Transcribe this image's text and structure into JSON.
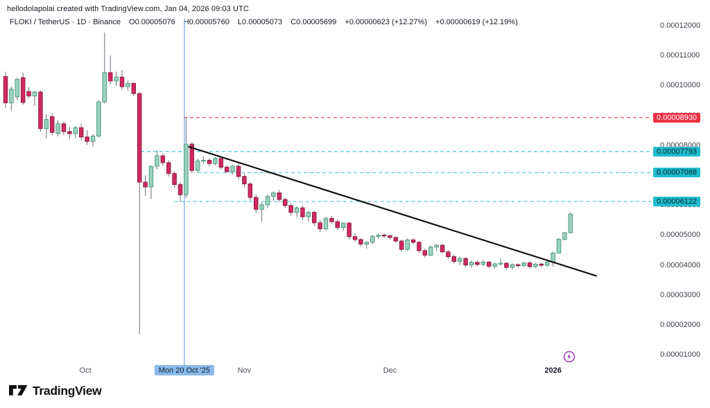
{
  "header": {
    "credit_line": "hellodolapolai created with TradingView.com, Jan 04, 2026 09:03 UTC",
    "symbol_info": "FLOKI / TetherUS · 1D · Binance",
    "o": "O0.00005076",
    "h": "H0.00005760",
    "l": "L0.00005073",
    "c": "C0.00005699",
    "chg1": "+0.00000623 (+12.27%)",
    "chg2": "+0.00000619 (+12.19%)"
  },
  "footer": {
    "logo_text": "TradingView"
  },
  "colors": {
    "up_fill": "#9ad2bb",
    "up_border": "#4f9a83",
    "down_fill": "#d02a5e",
    "down_border": "#8e1e47",
    "wick": "#6a6d78",
    "trendline": "#111111",
    "vline": "#8fb9e6",
    "resistance": "#ef3146",
    "support": "#1fbccd",
    "axis_text": "#3a3e4a"
  },
  "chart_data": {
    "type": "candlestick",
    "symbol": "FLOKI/TetherUS",
    "interval": "1D",
    "exchange": "Binance",
    "price_unit": 1e-08,
    "note": "candles are [open,high,low,close] in units of 0.00000001",
    "candles": [
      [
        10300,
        10460,
        9260,
        9420
      ],
      [
        9420,
        9960,
        9160,
        9880
      ],
      [
        9620,
        10260,
        9500,
        10200
      ],
      [
        10260,
        10430,
        9360,
        9430
      ],
      [
        9800,
        9940,
        9560,
        9650
      ],
      [
        9650,
        9830,
        9320,
        9780
      ],
      [
        9780,
        9830,
        8460,
        8560
      ],
      [
        8560,
        9040,
        8230,
        8860
      ],
      [
        8960,
        9070,
        8340,
        8430
      ],
      [
        8400,
        8830,
        8300,
        8720
      ],
      [
        8720,
        8800,
        8340,
        8460
      ],
      [
        8460,
        8620,
        8210,
        8390
      ],
      [
        8390,
        8650,
        8240,
        8590
      ],
      [
        8590,
        8730,
        8180,
        8280
      ],
      [
        8280,
        8500,
        8020,
        8130
      ],
      [
        8130,
        8370,
        7950,
        8310
      ],
      [
        8310,
        9520,
        8260,
        9450
      ],
      [
        9450,
        11770,
        9400,
        10430
      ],
      [
        10430,
        11000,
        10040,
        10150
      ],
      [
        10150,
        10460,
        9980,
        10280
      ],
      [
        10280,
        10520,
        9850,
        9960
      ],
      [
        9960,
        10160,
        9830,
        10070
      ],
      [
        10070,
        10110,
        9640,
        9730
      ],
      [
        9730,
        9770,
        1700,
        6770
      ],
      [
        6770,
        6990,
        6310,
        6610
      ],
      [
        6610,
        7320,
        6200,
        7300
      ],
      [
        7300,
        7830,
        7200,
        7650
      ],
      [
        7650,
        7730,
        7310,
        7420
      ],
      [
        7420,
        7500,
        6960,
        7060
      ],
      [
        7060,
        7130,
        6580,
        6690
      ],
      [
        6690,
        6780,
        6122,
        6350
      ],
      [
        6350,
        8930,
        6250,
        8040
      ],
      [
        8040,
        8100,
        7070,
        7160
      ],
      [
        7160,
        7560,
        7100,
        7480
      ],
      [
        7480,
        7630,
        7380,
        7500
      ],
      [
        7500,
        7570,
        7300,
        7390
      ],
      [
        7390,
        7610,
        7330,
        7560
      ],
      [
        7560,
        7640,
        7180,
        7270
      ],
      [
        7270,
        7340,
        7088,
        7120
      ],
      [
        7120,
        7360,
        7020,
        7300
      ],
      [
        7300,
        7380,
        6850,
        6960
      ],
      [
        6960,
        7060,
        6600,
        6710
      ],
      [
        6710,
        6760,
        6150,
        6260
      ],
      [
        6260,
        6360,
        5750,
        5860
      ],
      [
        5860,
        6110,
        5450,
        6010
      ],
      [
        6010,
        6360,
        5910,
        6290
      ],
      [
        6290,
        6460,
        6150,
        6410
      ],
      [
        6410,
        6510,
        6100,
        6190
      ],
      [
        6190,
        6260,
        5900,
        5990
      ],
      [
        5990,
        6060,
        5650,
        5760
      ],
      [
        5760,
        5960,
        5600,
        5910
      ],
      [
        5910,
        5990,
        5500,
        5610
      ],
      [
        5610,
        5810,
        5450,
        5760
      ],
      [
        5760,
        5810,
        5300,
        5410
      ],
      [
        5410,
        5510,
        5100,
        5210
      ],
      [
        5210,
        5610,
        5150,
        5560
      ],
      [
        5560,
        5640,
        5380,
        5450
      ],
      [
        5450,
        5520,
        5170,
        5250
      ],
      [
        5250,
        5430,
        5150,
        5400
      ],
      [
        5400,
        5450,
        4850,
        4950
      ],
      [
        4950,
        5060,
        4780,
        4850
      ],
      [
        4850,
        4900,
        4620,
        4700
      ],
      [
        4700,
        4800,
        4550,
        4760
      ],
      [
        4760,
        5000,
        4700,
        4960
      ],
      [
        4960,
        5050,
        4870,
        5000
      ],
      [
        5000,
        5060,
        4900,
        4980
      ],
      [
        4980,
        5020,
        4850,
        4920
      ],
      [
        4920,
        4960,
        4750,
        4800
      ],
      [
        4800,
        4850,
        4430,
        4520
      ],
      [
        4520,
        4880,
        4480,
        4840
      ],
      [
        4840,
        4900,
        4700,
        4760
      ],
      [
        4760,
        4800,
        4400,
        4480
      ],
      [
        4480,
        4550,
        4250,
        4330
      ],
      [
        4330,
        4650,
        4300,
        4600
      ],
      [
        4600,
        4700,
        4480,
        4660
      ],
      [
        4660,
        4720,
        4380,
        4440
      ],
      [
        4440,
        4500,
        4200,
        4280
      ],
      [
        4280,
        4350,
        4050,
        4120
      ],
      [
        4120,
        4280,
        4000,
        4220
      ],
      [
        4220,
        4260,
        3930,
        4000
      ],
      [
        4000,
        4150,
        3900,
        4090
      ],
      [
        4090,
        4140,
        3950,
        4020
      ],
      [
        4020,
        4160,
        3960,
        4100
      ],
      [
        4100,
        4130,
        3900,
        3960
      ],
      [
        3960,
        4080,
        3880,
        4040
      ],
      [
        4040,
        4220,
        3990,
        4060
      ],
      [
        4060,
        4100,
        3850,
        3920
      ],
      [
        3920,
        4050,
        3850,
        4010
      ],
      [
        4010,
        4060,
        3900,
        3980
      ],
      [
        3980,
        4100,
        3930,
        4070
      ],
      [
        4070,
        4120,
        3880,
        3950
      ],
      [
        3950,
        4070,
        3900,
        4030
      ],
      [
        4030,
        4080,
        3920,
        3990
      ],
      [
        3990,
        4130,
        3940,
        4100
      ],
      [
        4100,
        4450,
        3940,
        4400
      ],
      [
        4400,
        4900,
        4380,
        4860
      ],
      [
        4860,
        5100,
        4820,
        5076
      ],
      [
        5076,
        5760,
        5073,
        5699
      ]
    ],
    "y_ticks": [
      {
        "u": 12000,
        "label": "0.00012000"
      },
      {
        "u": 11000,
        "label": "0.00011000"
      },
      {
        "u": 10000,
        "label": "0.00010000"
      },
      {
        "u": 9000,
        "label": "0.00009000"
      },
      {
        "u": 8000,
        "label": "0.00008000"
      },
      {
        "u": 7000,
        "label": "0.00007000"
      },
      {
        "u": 6000,
        "label": "0.00006000"
      },
      {
        "u": 5000,
        "label": "0.00005000"
      },
      {
        "u": 4000,
        "label": "0.00004000"
      },
      {
        "u": 3000,
        "label": "0.00003000"
      },
      {
        "u": 2000,
        "label": "0.00002000"
      },
      {
        "u": 1000,
        "label": "0.00001000"
      }
    ],
    "x_ticks": [
      {
        "i": 13.7,
        "label": "Oct",
        "bold": false
      },
      {
        "i": 41,
        "label": "Nov",
        "bold": false
      },
      {
        "i": 66,
        "label": "Dec",
        "bold": false
      },
      {
        "i": 94,
        "label": "2026",
        "bold": true
      }
    ],
    "date_highlight": {
      "i": 30.7,
      "label": "Mon 20 Oct '25"
    },
    "levels": [
      {
        "u": 8930,
        "label": "0.00008930",
        "kind": "resistance",
        "from_i": 30.6
      },
      {
        "u": 7793,
        "label": "0.00007793",
        "kind": "support",
        "from_i": 23.2
      },
      {
        "u": 7088,
        "label": "0.00007088",
        "kind": "support",
        "from_i": 33.0
      },
      {
        "u": 6122,
        "label": "0.00006122",
        "kind": "support",
        "from_i": 29.0
      }
    ],
    "trendline": {
      "i1": 31.5,
      "u1": 7950,
      "i2": 101.4,
      "u2": 3640
    },
    "ylim_u": [
      0,
      12600
    ],
    "grid": false,
    "legend_position": "none"
  }
}
